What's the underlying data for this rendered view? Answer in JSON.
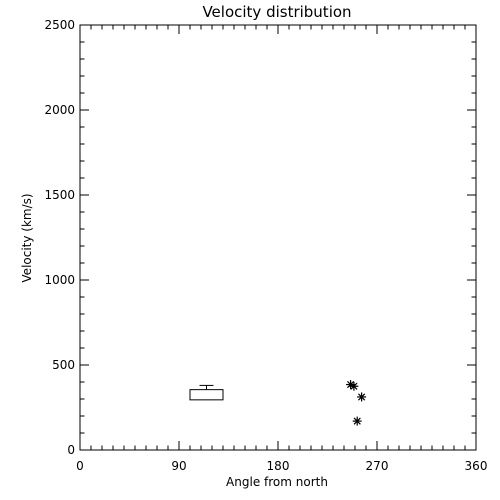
{
  "chart_data": {
    "type": "box+scatter",
    "title": "Velocity distribution",
    "xlabel": "Angle from north",
    "ylabel": "Velocity (km/s)",
    "xlim": [
      0,
      360
    ],
    "ylim": [
      0,
      2500
    ],
    "x_ticks": [
      0,
      90,
      180,
      270,
      360
    ],
    "x_tick_labels": [
      "0",
      "90",
      "180",
      "270",
      "360"
    ],
    "y_ticks": [
      0,
      500,
      1000,
      1500,
      2000,
      2500
    ],
    "y_tick_labels": [
      "0",
      "500",
      "1000",
      "1500",
      "2000",
      "2500"
    ],
    "grid": false,
    "legend": "none",
    "box": {
      "x_range": [
        100,
        130
      ],
      "q1": 295,
      "q3": 355,
      "median": 325,
      "whisker_low": 295,
      "whisker_high": 380
    },
    "points": [
      {
        "x": 246,
        "y": 385
      },
      {
        "x": 249,
        "y": 375
      },
      {
        "x": 256,
        "y": 312
      },
      {
        "x": 252,
        "y": 170
      }
    ]
  }
}
